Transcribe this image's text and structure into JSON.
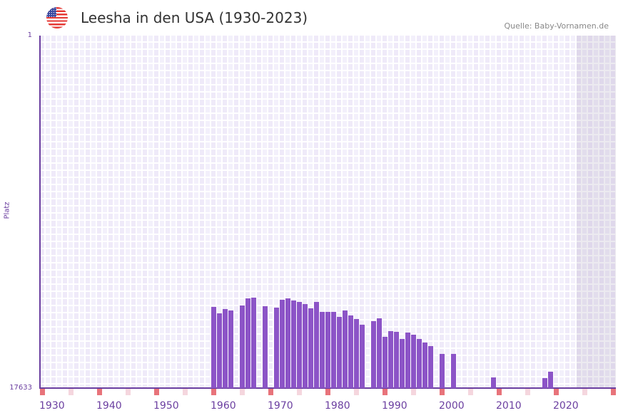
{
  "header": {
    "title": "Leesha in den USA (1930-2023)",
    "source": "Quelle: Baby-Vornamen.de",
    "flag_icon": "us-flag-icon"
  },
  "chart_data": {
    "type": "bar",
    "title": "Leesha in den USA (1930-2023)",
    "xlabel": "",
    "ylabel": "Platz",
    "y_axis_inverted": true,
    "ylim": [
      1,
      17633
    ],
    "y_tick_labels": [
      "1",
      "17633"
    ],
    "xlim": [
      1930,
      2030
    ],
    "x_tick_labels": [
      "1930",
      "1940",
      "1950",
      "1960",
      "1970",
      "1980",
      "1990",
      "2000",
      "2010",
      "2020"
    ],
    "shaded_from_year": 2024,
    "bar_color": "#8c54c7",
    "decade_marker_color": "#e8737a",
    "half_decade_marker_color": "#f5d6de",
    "x": [
      1960,
      1961,
      1962,
      1963,
      1965,
      1966,
      1967,
      1969,
      1971,
      1972,
      1973,
      1974,
      1975,
      1976,
      1977,
      1978,
      1979,
      1980,
      1981,
      1982,
      1983,
      1984,
      1985,
      1986,
      1988,
      1989,
      1990,
      1991,
      1992,
      1993,
      1994,
      1995,
      1996,
      1997,
      1998,
      2000,
      2002,
      2009,
      2018,
      2019
    ],
    "values": [
      13571,
      13892,
      13678,
      13749,
      13500,
      13144,
      13108,
      13536,
      13607,
      13215,
      13144,
      13251,
      13322,
      13429,
      13643,
      13322,
      13821,
      13821,
      13821,
      14070,
      13749,
      13999,
      14177,
      14462,
      14284,
      14141,
      15067,
      14782,
      14818,
      15174,
      14853,
      14960,
      15174,
      15352,
      15530,
      15922,
      15922,
      17098,
      17133,
      16813
    ]
  }
}
